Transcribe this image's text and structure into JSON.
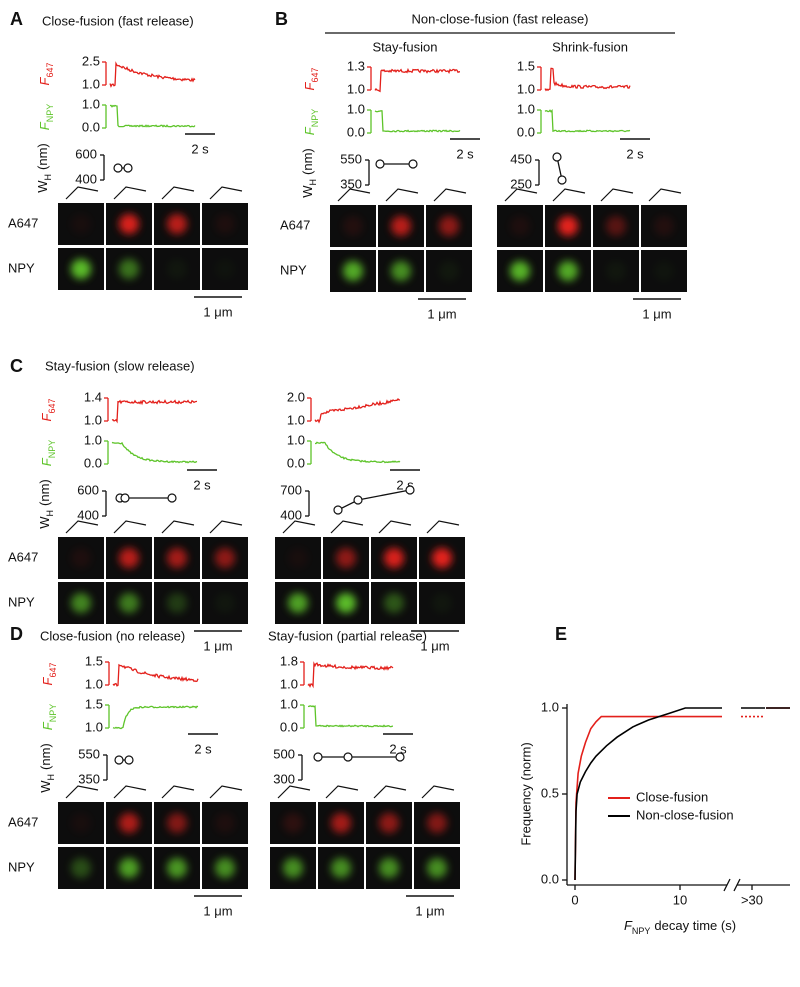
{
  "panels": [
    {
      "letter": "A",
      "title": "Close-fusion (fast release)",
      "subpanels": [
        {
          "f647_label": {
            "symbol": "F",
            "sub": "647"
          },
          "f647_ticks": [
            "2.5",
            "1.0"
          ],
          "fnpy_label": {
            "symbol": "F",
            "sub": "NPY"
          },
          "fnpy_ticks": [
            "1.0",
            "0.0"
          ],
          "time_scale": "2 s",
          "wh_label": {
            "symbol": "W",
            "sub": "H",
            "unit": "(nm)"
          },
          "wh_ticks": [
            "600",
            "400"
          ],
          "rows": [
            "A647",
            "NPY"
          ],
          "length_scale": "1 μm"
        }
      ]
    },
    {
      "letter": "B",
      "title": "Non-close-fusion (fast release)",
      "subpanels": [
        {
          "title": "Stay-fusion",
          "f647_label": {
            "symbol": "F",
            "sub": "647"
          },
          "f647_ticks": [
            "1.3",
            "1.0"
          ],
          "fnpy_label": {
            "symbol": "F",
            "sub": "NPY"
          },
          "fnpy_ticks": [
            "1.0",
            "0.0"
          ],
          "time_scale": "2 s",
          "wh_label": {
            "symbol": "W",
            "sub": "H",
            "unit": "(nm)"
          },
          "wh_ticks": [
            "550",
            "350"
          ],
          "rows": [
            "A647",
            "NPY"
          ],
          "length_scale": "1 μm"
        },
        {
          "title": "Shrink-fusion",
          "f647_ticks": [
            "1.5",
            "1.0"
          ],
          "fnpy_ticks": [
            "1.0",
            "0.0"
          ],
          "time_scale": "2 s",
          "wh_ticks": [
            "450",
            "250"
          ],
          "length_scale": "1 μm"
        }
      ]
    },
    {
      "letter": "C",
      "title": "Stay-fusion (slow release)",
      "subpanels": [
        {
          "f647_label": {
            "symbol": "F",
            "sub": "647"
          },
          "f647_ticks": [
            "1.4",
            "1.0"
          ],
          "fnpy_label": {
            "symbol": "F",
            "sub": "NPY"
          },
          "fnpy_ticks": [
            "1.0",
            "0.0"
          ],
          "time_scale": "2 s",
          "wh_label": {
            "symbol": "W",
            "sub": "H",
            "unit": "(nm)"
          },
          "wh_ticks": [
            "600",
            "400"
          ],
          "rows": [
            "A647",
            "NPY"
          ],
          "length_scale": "1 μm"
        },
        {
          "f647_ticks": [
            "2.0",
            "1.0"
          ],
          "fnpy_ticks": [
            "1.0",
            "0.0"
          ],
          "time_scale": "2 s",
          "wh_ticks": [
            "700",
            "400"
          ],
          "length_scale": "1 μm"
        }
      ]
    },
    {
      "letter": "D",
      "subpanels": [
        {
          "title": "Close-fusion (no release)",
          "f647_label": {
            "symbol": "F",
            "sub": "647"
          },
          "f647_ticks": [
            "1.5",
            "1.0"
          ],
          "fnpy_label": {
            "symbol": "F",
            "sub": "NPY"
          },
          "fnpy_ticks": [
            "1.5",
            "1.0"
          ],
          "time_scale": "2 s",
          "wh_label": {
            "symbol": "W",
            "sub": "H",
            "unit": "(nm)"
          },
          "wh_ticks": [
            "550",
            "350"
          ],
          "rows": [
            "A647",
            "NPY"
          ],
          "length_scale": "1 μm"
        },
        {
          "title": "Stay-fusion (partial release)",
          "f647_ticks": [
            "1.8",
            "1.0"
          ],
          "fnpy_ticks": [
            "1.0",
            "0.0"
          ],
          "time_scale": "2 s",
          "wh_ticks": [
            "500",
            "300"
          ],
          "length_scale": "1 μm"
        }
      ]
    }
  ],
  "chart_data": {
    "type": "line",
    "panel_letter": "E",
    "ylabel": "Frequency (norm)",
    "xlabel": {
      "symbol": "F",
      "sub": "NPY",
      "text": "decay time (s)"
    },
    "xlim": [
      0,
      14
    ],
    "ylim": [
      0,
      1
    ],
    "xticks": [
      0,
      10
    ],
    "xbreak_label": ">30",
    "yticks": [
      {
        "value": 0,
        "label": "0.0"
      },
      {
        "value": 0.5,
        "label": "0.5"
      },
      {
        "value": 1,
        "label": "1.0"
      }
    ],
    "legend": "lower right",
    "series": [
      {
        "name": "Close-fusion",
        "color": "#e3201b",
        "x": [
          0,
          0.1,
          0.3,
          0.6,
          1,
          1.5,
          2,
          2.5,
          14
        ],
        "values": [
          0,
          0.45,
          0.62,
          0.72,
          0.8,
          0.88,
          0.92,
          0.95,
          0.95
        ],
        "tail_values": [
          0.95,
          1.0
        ]
      },
      {
        "name": "Non-close-fusion",
        "color": "#000000",
        "x": [
          0,
          0.1,
          0.2,
          0.5,
          1,
          1.5,
          2,
          3,
          4,
          5.5,
          7,
          8,
          9,
          10.5,
          14
        ],
        "values": [
          0,
          0.4,
          0.5,
          0.57,
          0.63,
          0.68,
          0.72,
          0.78,
          0.83,
          0.89,
          0.93,
          0.95,
          0.97,
          1.0,
          1.0
        ],
        "tail_values": [
          1.0,
          1.0
        ]
      }
    ]
  }
}
